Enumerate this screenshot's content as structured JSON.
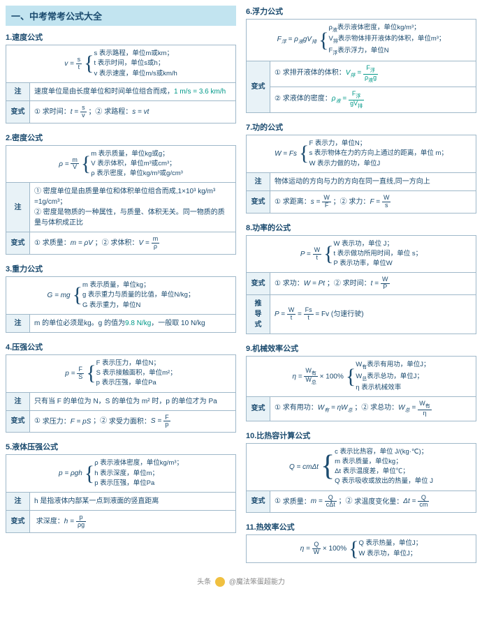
{
  "mainTitle": "一、中考常考公式大全",
  "labels": {
    "note": "注",
    "variant": "变式",
    "derive": "推导式"
  },
  "footer": {
    "prefix": "头条",
    "author": "@魔法笨蛋超能力"
  },
  "left": [
    {
      "title": "1.速度公式",
      "formula": {
        "lhs": "v =",
        "frac": [
          "s",
          "t"
        ],
        "lines": [
          "s 表示路程，单位m或km；",
          "t 表示时间，单位s或h；",
          "v 表示速度，单位m/s或km/h"
        ]
      },
      "note": {
        "pre": "速度单位是由长度单位和时间单位组合而成，",
        "hl": "1 m/s = 3.6 km/h"
      },
      "variant": [
        {
          "num": "①",
          "label": "求时间：",
          "lhs": "t =",
          "frac": [
            "s",
            "v"
          ]
        },
        {
          "num": "；②",
          "label": "求路程：",
          "plain": "s = vt"
        }
      ]
    },
    {
      "title": "2.密度公式",
      "formula": {
        "lhs": "ρ =",
        "frac": [
          "m",
          "V"
        ],
        "lines": [
          "m 表示质量，单位kg或g；",
          "V 表示体积，单位m³或cm³；",
          "ρ 表示密度，单位kg/m³或g/cm³"
        ]
      },
      "noteLines": [
        "① 密度单位是由质量单位和体积单位组合而成,1×10³ kg/m³ =1g/cm³；",
        "② 密度是物质的一种属性，与质量、体积无关。同一物质的质量与体积成正比"
      ],
      "variant": [
        {
          "num": "①",
          "label": "求质量：",
          "plain": "m = ρV"
        },
        {
          "num": "；②",
          "label": "求体积：",
          "lhs": "V =",
          "frac": [
            "m",
            "ρ"
          ]
        }
      ]
    },
    {
      "title": "3.重力公式",
      "formula": {
        "lhs": "G = mg",
        "lines": [
          "m 表示质量，单位kg；",
          "g 表示重力与质量的比值，单位N/kg；",
          "G 表示重力，单位N"
        ]
      },
      "note": {
        "pre": "m 的单位必须是kg。g 的值为",
        "hl": "9.8 N/kg",
        "post": "，一般取 10 N/kg"
      }
    },
    {
      "title": "4.压强公式",
      "formula": {
        "lhs": "p =",
        "frac": [
          "F",
          "S"
        ],
        "lines": [
          "F 表示压力，单位N；",
          "S 表示接触面积，单位m²；",
          "p 表示压强，单位Pa"
        ]
      },
      "notePlain": "只有当 F 的单位为 N，S 的单位为 m² 时，p 的单位才为 Pa",
      "variant": [
        {
          "num": "①",
          "label": "求压力：",
          "plain": "F = pS"
        },
        {
          "num": "；②",
          "label": "求受力面积：",
          "lhs": "S =",
          "frac": [
            "F",
            "p"
          ]
        }
      ]
    },
    {
      "title": "5.液体压强公式",
      "formula": {
        "lhs": "p = ρgh",
        "lines": [
          "ρ 表示液体密度，单位kg/m³；",
          "h 表示深度，单位m；",
          "p 表示压强，单位Pa"
        ]
      },
      "notePlain": "h 是指液体内部某一点到液面的竖直距离",
      "variant": [
        {
          "num": "",
          "label": "求深度：",
          "lhs": "h =",
          "frac": [
            "p",
            "ρg"
          ]
        }
      ]
    }
  ],
  "right": [
    {
      "title": "6.浮力公式",
      "formula": {
        "lhs_html": "F<sub>浮</sub> = ρ<sub>液</sub>gV<sub>排</sub>",
        "lines": [
          "ρ<sub>液</sub>表示液体密度，单位kg/m³；",
          "V<sub>排</sub>表示物体排开液体的体积，单位m³；",
          "F<sub>浮</sub>表示浮力，单位N"
        ]
      },
      "variantTwoRow": [
        {
          "num": "①",
          "label": "求排开液体的体积：",
          "lhs_html": "V<sub>排</sub> =",
          "frac_html": [
            "F<sub>浮</sub>",
            "ρ<sub>液</sub>g"
          ],
          "teal": true
        },
        {
          "num": "②",
          "label": "求液体的密度：",
          "lhs_html": "ρ<sub>液</sub> =",
          "frac_html": [
            "F<sub>浮</sub>",
            "gV<sub>排</sub>"
          ],
          "teal": true
        }
      ]
    },
    {
      "title": "7.功的公式",
      "formula": {
        "lhs": "W = Fs",
        "lines": [
          "F 表示力，单位N；",
          "s 表示物体在力的方向上通过的距离，单位 m；",
          "W 表示力做的功，单位J"
        ]
      },
      "notePlain": "物体运动的方向与力的方向在同一直线,同一方向上",
      "variant": [
        {
          "num": "①",
          "label": "求距离：",
          "lhs": "s =",
          "frac": [
            "W",
            "F"
          ]
        },
        {
          "num": "；②",
          "label": "求力：",
          "lhs": "F =",
          "frac": [
            "W",
            "s"
          ]
        }
      ]
    },
    {
      "title": "8.功率的公式",
      "formula": {
        "lhs": "P =",
        "frac": [
          "W",
          "t"
        ],
        "lines": [
          "W 表示功，单位 J；",
          "t 表示做功所用时间，单位 s；",
          "P 表示功率，单位W"
        ]
      },
      "variant": [
        {
          "num": "①",
          "label": "求功：",
          "plain": "W = Pt"
        },
        {
          "num": "；②",
          "label": "求时间：",
          "lhs": "t =",
          "frac": [
            "W",
            "P"
          ]
        }
      ],
      "derive": {
        "lhs": "P =",
        "chain": [
          [
            "W",
            "t"
          ],
          [
            "Fs",
            "t"
          ]
        ],
        "tail": "= Fv (匀速行驶)"
      }
    },
    {
      "title": "9.机械效率公式",
      "formula": {
        "lhs_html": "η =",
        "frac_html": [
          "W<sub>有</sub>",
          "W<sub>总</sub>"
        ],
        "tail": "× 100%",
        "lines": [
          "W<sub>有</sub>表示有用功，单位J；",
          "W<sub>总</sub>表示总功，单位J；",
          "η 表示机械效率"
        ]
      },
      "variant": [
        {
          "num": "①",
          "label": "求有用功：",
          "plain_html": "W<sub>有</sub> = ηW<sub>总</sub>"
        },
        {
          "num": "；②",
          "label": "求总功：",
          "lhs_html": "W<sub>总</sub> =",
          "frac_html": [
            "W<sub>有</sub>",
            "η"
          ]
        }
      ]
    },
    {
      "title": "10.比热容计算公式",
      "formula": {
        "lhs": "Q = cmΔt",
        "braceLg": true,
        "lines": [
          "c 表示比热容，单位 J/(kg·℃)；",
          "m 表示质量，单位kg；",
          "Δt 表示温度差，单位℃；",
          "Q 表示吸收或放出的热量，单位 J"
        ]
      },
      "variant": [
        {
          "num": "①",
          "label": "求质量：",
          "lhs": "m =",
          "frac": [
            "Q",
            "cΔt"
          ]
        },
        {
          "num": "；②",
          "label": "求温度变化量：",
          "lhs": "Δt =",
          "frac": [
            "Q",
            "cm"
          ]
        }
      ]
    },
    {
      "title": "11.热效率公式",
      "formula": {
        "lhs": "η =",
        "frac": [
          "Q",
          "W"
        ],
        "tail": "× 100%",
        "lines": [
          "Q 表示热量，单位J；",
          "W 表示功，单位J；"
        ]
      }
    }
  ]
}
